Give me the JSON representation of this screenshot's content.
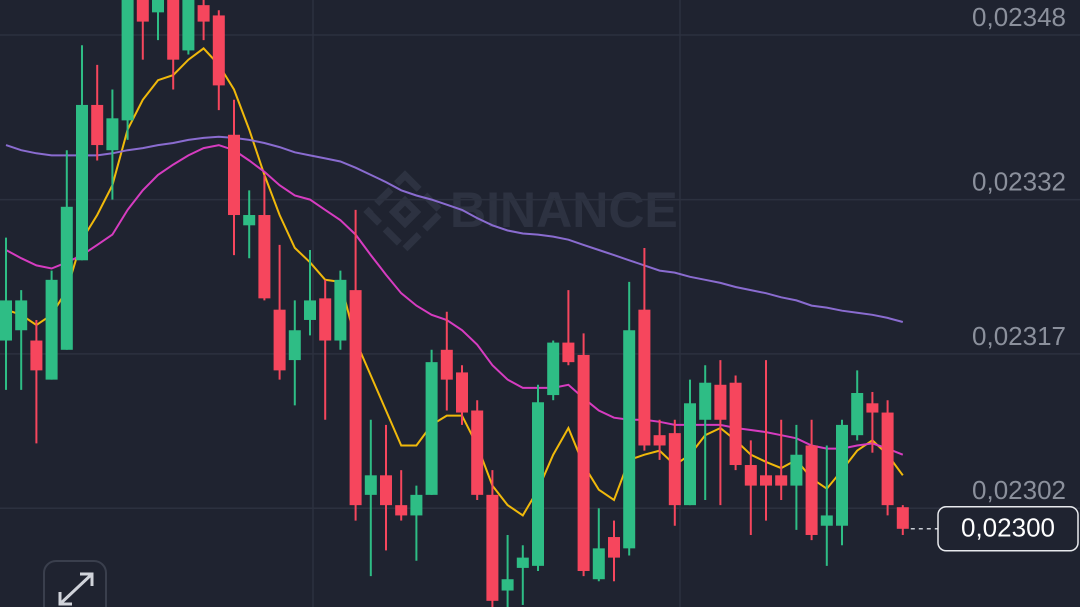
{
  "chart_data": {
    "type": "candlestick",
    "watermark": "BINANCE",
    "up_color": "#2ebd85",
    "down_color": "#f6465d",
    "ylim": [
      0.022924,
      0.023514
    ],
    "yticks": [
      {
        "value": 0.02348,
        "label": "0,02348"
      },
      {
        "value": 0.02332,
        "label": "0,02332"
      },
      {
        "value": 0.02317,
        "label": "0,02317"
      },
      {
        "value": 0.02302,
        "label": "0,02302"
      }
    ],
    "grid": true,
    "last_price": {
      "value": 0.023,
      "label": "0,02300"
    },
    "open": [
      0.023183,
      0.023193,
      0.023183,
      0.023145,
      0.023174,
      0.023261,
      0.023412,
      0.023368,
      0.023397,
      0.023514,
      0.023502,
      0.023514,
      0.023465,
      0.023509,
      0.023499,
      0.023383,
      0.023295,
      0.023305,
      0.023213,
      0.023164,
      0.023203,
      0.023224,
      0.023183,
      0.023232,
      0.023033,
      0.023052,
      0.023023,
      0.023013,
      0.023033,
      0.023174,
      0.023152,
      0.023115,
      0.023033,
      0.02294,
      0.022962,
      0.022964,
      0.02313,
      0.023181,
      0.023169,
      0.022951,
      0.022992,
      0.022981,
      0.023213,
      0.023091,
      0.023093,
      0.023023,
      0.023106,
      0.02314,
      0.023142,
      0.023062,
      0.023052,
      0.023052,
      0.023042,
      0.023081,
      0.023003,
      0.023003,
      0.023091,
      0.023122,
      0.023113,
      0.023021
    ],
    "high": [
      0.023283,
      0.023232,
      0.023203,
      0.023251,
      0.023368,
      0.02347,
      0.023451,
      0.023427,
      0.023514,
      0.023514,
      0.023514,
      0.023514,
      0.023514,
      0.023514,
      0.023504,
      0.023417,
      0.023329,
      0.023344,
      0.023276,
      0.023222,
      0.023271,
      0.023242,
      0.023251,
      0.02331,
      0.023106,
      0.023101,
      0.023057,
      0.023042,
      0.023174,
      0.023211,
      0.023159,
      0.023125,
      0.023057,
      0.022994,
      0.022984,
      0.02314,
      0.023183,
      0.023232,
      0.02319,
      0.02302,
      0.023008,
      0.02324,
      0.023273,
      0.023106,
      0.023106,
      0.023145,
      0.023159,
      0.023164,
      0.023149,
      0.023086,
      0.023164,
      0.023106,
      0.023101,
      0.023106,
      0.023081,
      0.023106,
      0.023154,
      0.023133,
      0.023125,
      0.023023
    ],
    "low": [
      0.023135,
      0.023135,
      0.023083,
      0.023145,
      0.023174,
      0.023261,
      0.023358,
      0.02332,
      0.023378,
      0.023456,
      0.023475,
      0.023427,
      0.023461,
      0.023475,
      0.023407,
      0.023266,
      0.023263,
      0.023222,
      0.023145,
      0.02312,
      0.023188,
      0.023106,
      0.023174,
      0.023008,
      0.022954,
      0.022979,
      0.023008,
      0.022969,
      0.023033,
      0.023115,
      0.023101,
      0.023028,
      0.022924,
      0.022924,
      0.022926,
      0.022959,
      0.023125,
      0.023159,
      0.022954,
      0.022949,
      0.022949,
      0.022974,
      0.023076,
      0.023067,
      0.023003,
      0.023023,
      0.023028,
      0.023023,
      0.023057,
      0.022994,
      0.023008,
      0.023028,
      0.022999,
      0.022989,
      0.022964,
      0.022984,
      0.023086,
      0.023074,
      0.023013,
      0.022994
    ],
    "close": [
      0.023222,
      0.023222,
      0.023154,
      0.023242,
      0.023313,
      0.023412,
      0.023373,
      0.023399,
      0.023514,
      0.023493,
      0.023514,
      0.023456,
      0.023514,
      0.023493,
      0.023431,
      0.023305,
      0.023305,
      0.023224,
      0.023154,
      0.023193,
      0.023222,
      0.023183,
      0.023242,
      0.023023,
      0.023052,
      0.023023,
      0.023013,
      0.023033,
      0.023162,
      0.023145,
      0.023113,
      0.023033,
      0.02293,
      0.022951,
      0.022972,
      0.023123,
      0.023181,
      0.023162,
      0.022959,
      0.022981,
      0.022972,
      0.023193,
      0.023081,
      0.023081,
      0.023023,
      0.023122,
      0.023142,
      0.023106,
      0.023062,
      0.023042,
      0.023042,
      0.023042,
      0.023072,
      0.022994,
      0.023013,
      0.023101,
      0.023132,
      0.023113,
      0.023023,
      0.023
    ],
    "series": [
      {
        "color": "#f0b90b",
        "values": [
          0.023213,
          0.023208,
          0.023198,
          0.023208,
          0.023232,
          0.023281,
          0.023305,
          0.023334,
          0.023388,
          0.023417,
          0.023436,
          0.023441,
          0.023456,
          0.023467,
          0.023451,
          0.023427,
          0.023388,
          0.023344,
          0.023305,
          0.023273,
          0.023259,
          0.023242,
          0.02324,
          0.023183,
          0.023149,
          0.023115,
          0.023081,
          0.023081,
          0.023101,
          0.02311,
          0.02311,
          0.023081,
          0.023042,
          0.023023,
          0.023013,
          0.023038,
          0.023072,
          0.023098,
          0.023062,
          0.023038,
          0.023028,
          0.023067,
          0.023072,
          0.023076,
          0.023062,
          0.023072,
          0.023091,
          0.023098,
          0.023086,
          0.023072,
          0.023065,
          0.023059,
          0.023067,
          0.023049,
          0.023039,
          0.023057,
          0.023076,
          0.023086,
          0.023072,
          0.023052
        ]
      },
      {
        "color": "#d63cc0",
        "values": [
          0.023271,
          0.023263,
          0.023256,
          0.023253,
          0.023259,
          0.023266,
          0.023276,
          0.023286,
          0.02331,
          0.023329,
          0.023344,
          0.023354,
          0.023363,
          0.02337,
          0.023373,
          0.023368,
          0.023358,
          0.023347,
          0.023334,
          0.023324,
          0.02332,
          0.02331,
          0.0233,
          0.023286,
          0.023266,
          0.023247,
          0.023229,
          0.023217,
          0.023208,
          0.023203,
          0.023193,
          0.023179,
          0.023159,
          0.023145,
          0.023137,
          0.023137,
          0.023137,
          0.02314,
          0.023127,
          0.023115,
          0.023108,
          0.023106,
          0.023106,
          0.023104,
          0.023101,
          0.023101,
          0.023101,
          0.023101,
          0.023098,
          0.023096,
          0.023094,
          0.023091,
          0.023088,
          0.023081,
          0.023078,
          0.023078,
          0.023081,
          0.023083,
          0.023078,
          0.023072
        ]
      },
      {
        "color": "#8a6cd0",
        "values": [
          0.023373,
          0.023368,
          0.023365,
          0.023363,
          0.023363,
          0.023363,
          0.023363,
          0.023365,
          0.023368,
          0.02337,
          0.023373,
          0.023375,
          0.023378,
          0.02338,
          0.023381,
          0.02338,
          0.023378,
          0.023375,
          0.023371,
          0.023366,
          0.023363,
          0.02336,
          0.023357,
          0.023351,
          0.023344,
          0.023337,
          0.023329,
          0.023324,
          0.02332,
          0.023315,
          0.02331,
          0.023302,
          0.023295,
          0.02329,
          0.023287,
          0.023286,
          0.023284,
          0.023281,
          0.023276,
          0.023271,
          0.023266,
          0.023261,
          0.023256,
          0.023251,
          0.023249,
          0.023245,
          0.023242,
          0.023239,
          0.023235,
          0.023232,
          0.023229,
          0.023225,
          0.023222,
          0.023217,
          0.023215,
          0.023212,
          0.02321,
          0.023208,
          0.023205,
          0.023201
        ]
      }
    ]
  }
}
